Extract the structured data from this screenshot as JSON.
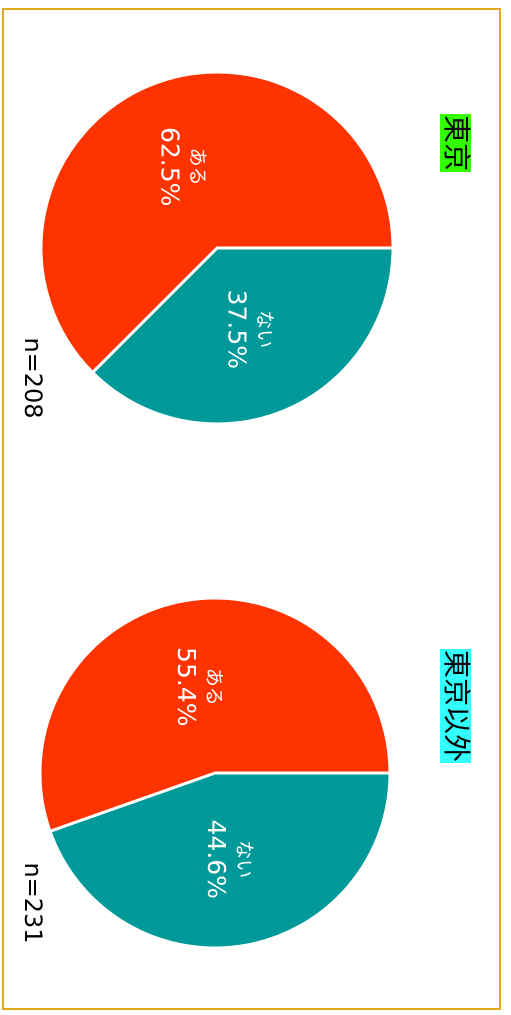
{
  "chart_data": [
    {
      "type": "pie",
      "title": "東京",
      "title_bg": "#33ff00",
      "n_label": "n=208",
      "slices": [
        {
          "label": "ない",
          "value": 37.5,
          "value_label": "37.5%",
          "color": "#009999"
        },
        {
          "label": "ある",
          "value": 62.5,
          "value_label": "62.5%",
          "color": "#ff3300"
        }
      ]
    },
    {
      "type": "pie",
      "title": "東京以外",
      "title_bg": "#33ffff",
      "n_label": "n=231",
      "slices": [
        {
          "label": "ない",
          "value": 44.6,
          "value_label": "44.6%",
          "color": "#009999"
        },
        {
          "label": "ある",
          "value": 55.4,
          "value_label": "55.4%",
          "color": "#ff3300"
        }
      ]
    }
  ]
}
